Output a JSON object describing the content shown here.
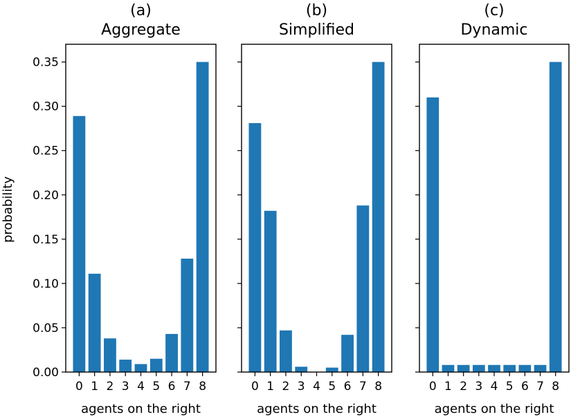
{
  "chart_data": [
    {
      "type": "bar",
      "title_prefix": "(a)",
      "title": "Aggregate",
      "xlabel": "agents on the right",
      "ylabel": "probability",
      "categories": [
        "0",
        "1",
        "2",
        "3",
        "4",
        "5",
        "6",
        "7",
        "8"
      ],
      "values": [
        0.289,
        0.111,
        0.038,
        0.014,
        0.009,
        0.015,
        0.043,
        0.128,
        0.35
      ],
      "ylim": [
        0,
        0.37
      ],
      "yticks": [
        0.0,
        0.05,
        0.1,
        0.15,
        0.2,
        0.25,
        0.3,
        0.35
      ],
      "ytick_labels": [
        "0.00",
        "0.05",
        "0.10",
        "0.15",
        "0.20",
        "0.25",
        "0.30",
        "0.35"
      ],
      "color": "#1f77b4",
      "grid": false
    },
    {
      "type": "bar",
      "title_prefix": "(b)",
      "title": "Simplified",
      "xlabel": "agents on the right",
      "ylabel": "",
      "categories": [
        "0",
        "1",
        "2",
        "3",
        "4",
        "5",
        "6",
        "7",
        "8"
      ],
      "values": [
        0.281,
        0.182,
        0.047,
        0.006,
        0.0,
        0.005,
        0.042,
        0.188,
        0.35
      ],
      "ylim": [
        0,
        0.37
      ],
      "yticks": [
        0.0,
        0.05,
        0.1,
        0.15,
        0.2,
        0.25,
        0.3,
        0.35
      ],
      "ytick_labels": [],
      "color": "#1f77b4",
      "grid": false
    },
    {
      "type": "bar",
      "title_prefix": "(c)",
      "title": "Dynamic",
      "xlabel": "agents on the right",
      "ylabel": "",
      "categories": [
        "0",
        "1",
        "2",
        "3",
        "4",
        "5",
        "6",
        "7",
        "8"
      ],
      "values": [
        0.31,
        0.008,
        0.008,
        0.008,
        0.008,
        0.008,
        0.008,
        0.008,
        0.35
      ],
      "ylim": [
        0,
        0.37
      ],
      "yticks": [
        0.0,
        0.05,
        0.1,
        0.15,
        0.2,
        0.25,
        0.3,
        0.35
      ],
      "ytick_labels": [],
      "color": "#1f77b4",
      "grid": false
    }
  ]
}
